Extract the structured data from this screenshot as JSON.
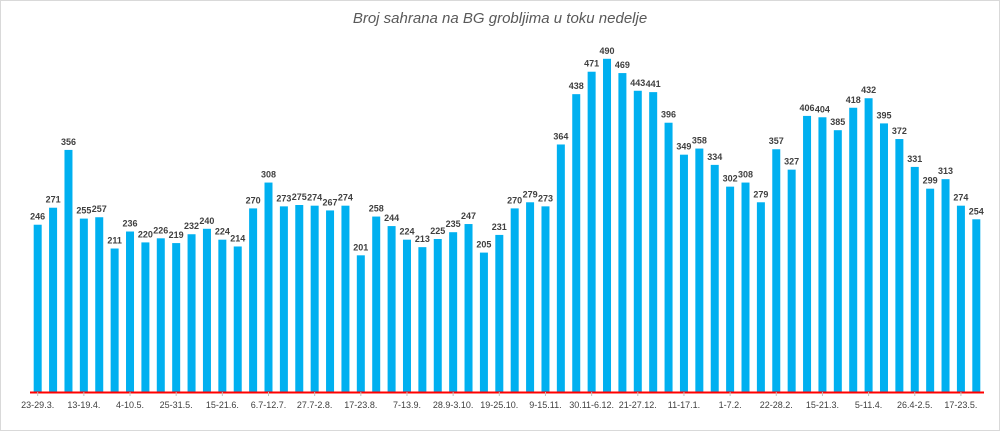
{
  "chart_data": {
    "type": "bar",
    "title": "Broj sahrana na BG grobljima u toku nedelje",
    "xlabel": "",
    "ylabel": "",
    "ylim": [
      0,
      500
    ],
    "grid": false,
    "legend": "none",
    "bar_color": "#00b0f0",
    "axis_color": "#ff0000",
    "values": [
      246,
      271,
      356,
      255,
      257,
      211,
      236,
      220,
      226,
      219,
      232,
      240,
      224,
      214,
      270,
      308,
      273,
      275,
      274,
      267,
      274,
      201,
      258,
      244,
      224,
      213,
      225,
      235,
      247,
      205,
      231,
      270,
      279,
      273,
      364,
      438,
      471,
      490,
      469,
      443,
      441,
      396,
      349,
      358,
      334,
      302,
      308,
      279,
      357,
      327,
      406,
      404,
      385,
      418,
      432,
      395,
      372,
      331,
      299,
      313,
      274,
      254
    ],
    "tick_labels": [
      {
        "index": 0,
        "label": "23-29.3."
      },
      {
        "index": 3,
        "label": "13-19.4."
      },
      {
        "index": 6,
        "label": "4-10.5."
      },
      {
        "index": 9,
        "label": "25-31.5."
      },
      {
        "index": 12,
        "label": "15-21.6."
      },
      {
        "index": 15,
        "label": "6.7-12.7."
      },
      {
        "index": 18,
        "label": "27.7-2.8."
      },
      {
        "index": 21,
        "label": "17-23.8."
      },
      {
        "index": 24,
        "label": "7-13.9."
      },
      {
        "index": 27,
        "label": "28.9-3.10."
      },
      {
        "index": 30,
        "label": "19-25.10."
      },
      {
        "index": 33,
        "label": "9-15.11."
      },
      {
        "index": 36,
        "label": "30.11-6.12."
      },
      {
        "index": 39,
        "label": "21-27.12."
      },
      {
        "index": 42,
        "label": "11-17.1."
      },
      {
        "index": 45,
        "label": "1-7.2."
      },
      {
        "index": 48,
        "label": "22-28.2."
      },
      {
        "index": 51,
        "label": "15-21.3."
      },
      {
        "index": 54,
        "label": "5-11.4."
      },
      {
        "index": 57,
        "label": "26.4-2.5."
      },
      {
        "index": 60,
        "label": "17-23.5."
      }
    ]
  }
}
